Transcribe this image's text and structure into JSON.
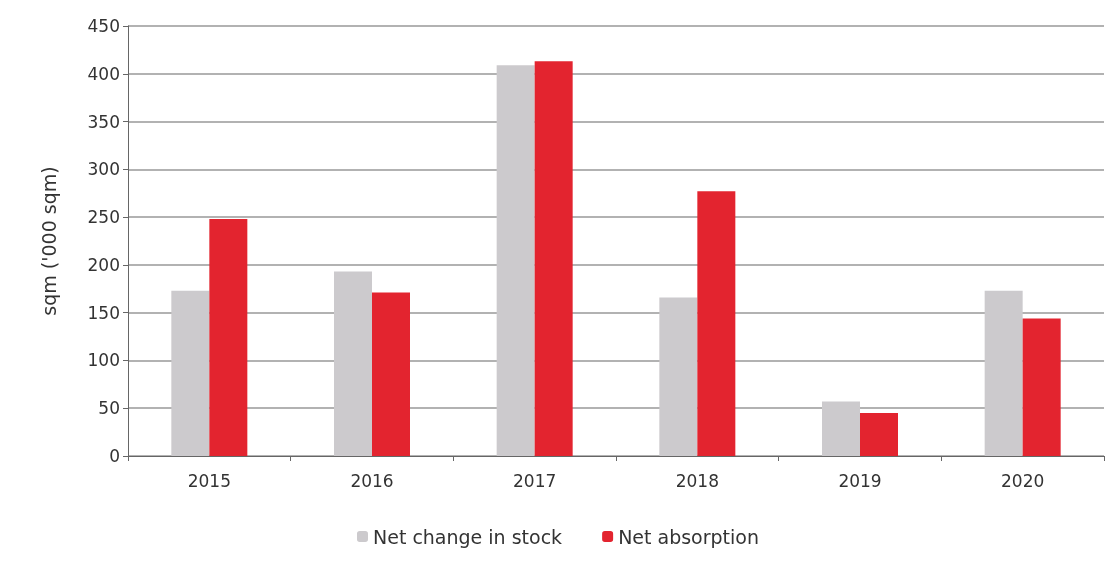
{
  "chart_data": {
    "type": "bar",
    "ylabel": "sqm ('000 sqm)",
    "categories": [
      "2015",
      "2016",
      "2017",
      "2018",
      "2019",
      "2020"
    ],
    "series": [
      {
        "name": "Net change in stock",
        "color": "#cccacd",
        "values": [
          173,
          193,
          409,
          166,
          57,
          173
        ]
      },
      {
        "name": "Net absorption",
        "color": "#e3242f",
        "values": [
          248,
          171,
          413,
          277,
          45,
          144
        ]
      }
    ],
    "ylim": [
      0,
      450
    ],
    "yticks": [
      0,
      50,
      100,
      150,
      200,
      250,
      300,
      350,
      400,
      450
    ],
    "grid": "y",
    "legend": "bottom"
  }
}
